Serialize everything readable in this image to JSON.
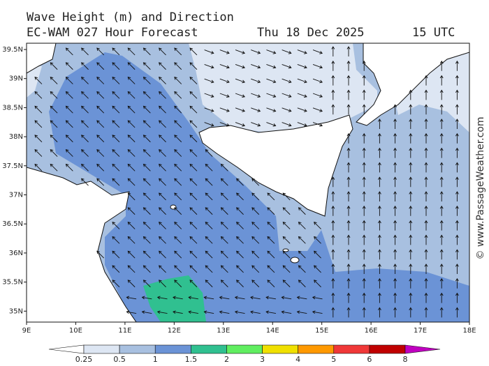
{
  "header": {
    "title": "Wave Height (m) and Direction",
    "model": "EC-WAM 027 Hour Forecast",
    "date": "Thu 18 Dec 2025",
    "time": "15 UTC"
  },
  "map": {
    "lon_labels": [
      "9E",
      "10E",
      "11E",
      "12E",
      "13E",
      "14E",
      "15E",
      "16E",
      "17E",
      "18E"
    ],
    "lat_labels": [
      "39.5N",
      "39N",
      "38.5N",
      "38N",
      "37.5N",
      "37N",
      "36.5N",
      "36N",
      "35.5N",
      "35N"
    ]
  },
  "colorbar": {
    "labels": [
      "0.25",
      "0.5",
      "1",
      "1.5",
      "2",
      "3",
      "4",
      "5",
      "6",
      "8"
    ],
    "colors": [
      "#ffffff",
      "#dde6f3",
      "#a8c0e0",
      "#6b93d6",
      "#30c090",
      "#60ee60",
      "#f0e000",
      "#ff9900",
      "#f03838",
      "#c00000",
      "#c000c0"
    ]
  },
  "watermark": "© www.PassageWeather.com"
}
